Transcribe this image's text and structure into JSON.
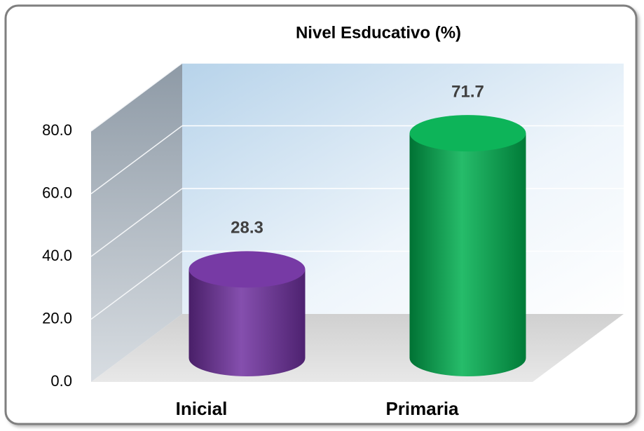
{
  "chart_data": {
    "type": "bar",
    "title": "Nivel Esducativo (%)",
    "categories": [
      "Inicial",
      "Primaria"
    ],
    "values": [
      28.3,
      71.7
    ],
    "colors": [
      "#7030a0",
      "#00b050"
    ],
    "ylim": [
      0,
      80
    ],
    "yticks": [
      {
        "value": 0,
        "label": "0.0"
      },
      {
        "value": 20,
        "label": "20.0"
      },
      {
        "value": 40,
        "label": "40.0"
      },
      {
        "value": 60,
        "label": "60.0"
      },
      {
        "value": 80,
        "label": "80.0"
      }
    ],
    "grid": true
  }
}
